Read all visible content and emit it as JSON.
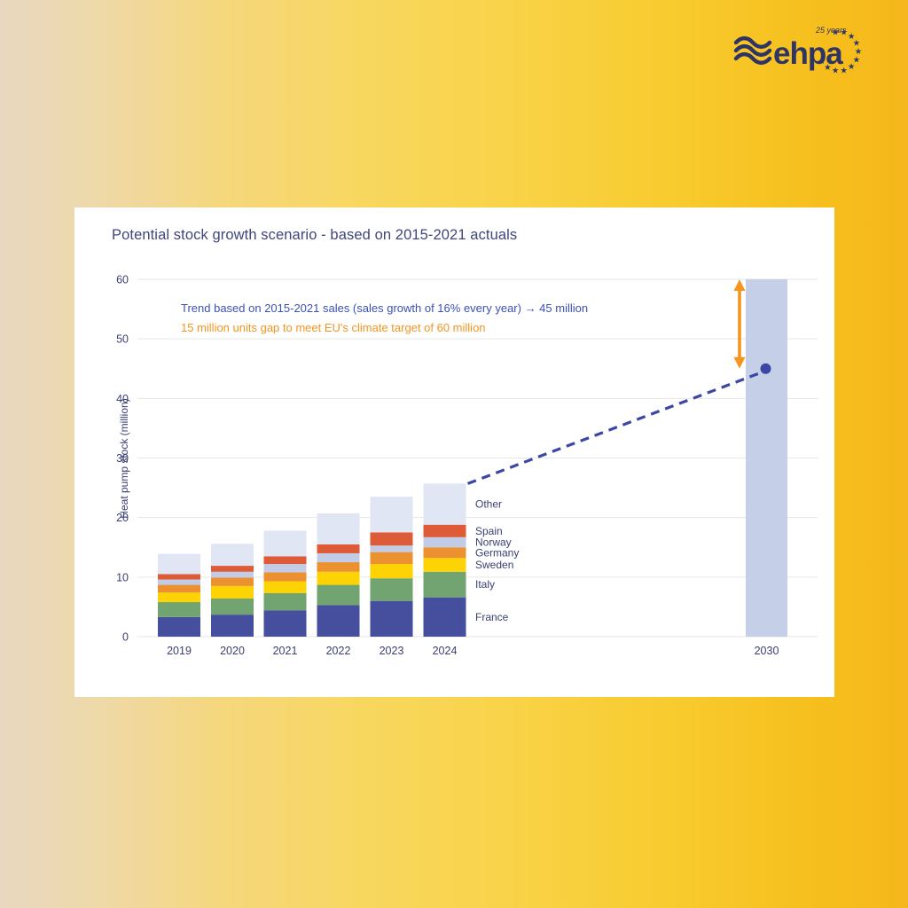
{
  "logo": {
    "brand": "ehpa",
    "tagline": "25 years",
    "star_count": 11,
    "color": "#2e3464"
  },
  "theme": {
    "background_left": "#e9d8c0",
    "background_right": "#f5b71b",
    "card_background": "#ffffff",
    "text_navy": "#3a4072"
  },
  "card": {
    "title": "Potential stock growth scenario - based on 2015-2021 actuals"
  },
  "chart_data": {
    "type": "bar",
    "stacked": true,
    "title": "Potential stock growth scenario - based on 2015-2021 actuals",
    "ylabel": "Heat pump stock (million)",
    "ylim": [
      0,
      60
    ],
    "yticks": [
      0,
      10,
      20,
      30,
      40,
      50,
      60
    ],
    "grid": true,
    "categories": [
      "2019",
      "2020",
      "2021",
      "2022",
      "2023",
      "2024"
    ],
    "series": [
      {
        "name": "France",
        "color": "#454f9e",
        "values": [
          3.3,
          3.7,
          4.4,
          5.3,
          6.0,
          6.6
        ]
      },
      {
        "name": "Italy",
        "color": "#71a471",
        "values": [
          2.5,
          2.7,
          2.9,
          3.4,
          3.8,
          4.3
        ]
      },
      {
        "name": "Sweden",
        "color": "#fdd303",
        "values": [
          1.6,
          2.1,
          2.0,
          2.2,
          2.4,
          2.3
        ]
      },
      {
        "name": "Germany",
        "color": "#ec9130",
        "values": [
          1.3,
          1.4,
          1.5,
          1.6,
          2.0,
          1.8
        ]
      },
      {
        "name": "Norway",
        "color": "#c2cce6",
        "values": [
          0.9,
          1.0,
          1.4,
          1.5,
          1.1,
          1.7
        ]
      },
      {
        "name": "Spain",
        "color": "#dd5b37",
        "values": [
          0.9,
          1.0,
          1.3,
          1.5,
          2.2,
          2.1
        ]
      },
      {
        "name": "Other",
        "color": "#e0e6f4",
        "values": [
          3.4,
          3.7,
          4.3,
          5.2,
          6.0,
          6.9
        ]
      }
    ],
    "totals": [
      13.9,
      15.6,
      17.8,
      20.7,
      23.5,
      25.7
    ],
    "target_bar": {
      "category": "2030",
      "value": 60,
      "color": "#c5cfe8"
    },
    "trend_line": {
      "from_category": "2024",
      "from_value": 25.7,
      "to_category": "2030",
      "to_value": 45,
      "style": "dashed",
      "color": "#3a47a5"
    },
    "gap_arrow": {
      "from_value": 45,
      "to_value": 60,
      "color": "#f5941f"
    },
    "annotations": [
      {
        "text": "Trend based on 2015-2021 sales (sales growth of 16% every year) → 45 million",
        "color": "#3b51b5"
      },
      {
        "text": "15 million units gap to meet EU's climate target of 60 million",
        "color": "#f5941f"
      }
    ],
    "legend_position": "right-of-last-bar"
  }
}
